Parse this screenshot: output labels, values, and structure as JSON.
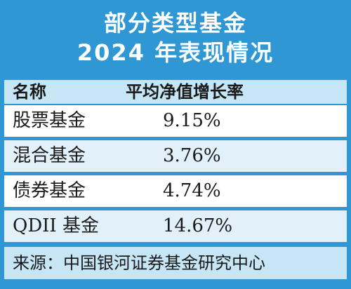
{
  "title": {
    "line1": "部分类型基金",
    "line2": "2024 年表现情况"
  },
  "table": {
    "headers": {
      "name": "名称",
      "value": "平均净值增长率"
    },
    "rows": [
      {
        "name": "股票基金",
        "value": "9.15%"
      },
      {
        "name": "混合基金",
        "value": "3.76%"
      },
      {
        "name": "债券基金",
        "value": "4.74%"
      },
      {
        "name": "QDII 基金",
        "value": "14.67%"
      }
    ]
  },
  "source": "来源：中国银河证券基金研究中心",
  "colors": {
    "frame_blue": "#2f97d4",
    "light_blue": "#c7e6f5",
    "row_alt": "#e2f1f9",
    "text": "#1a1a1a"
  }
}
